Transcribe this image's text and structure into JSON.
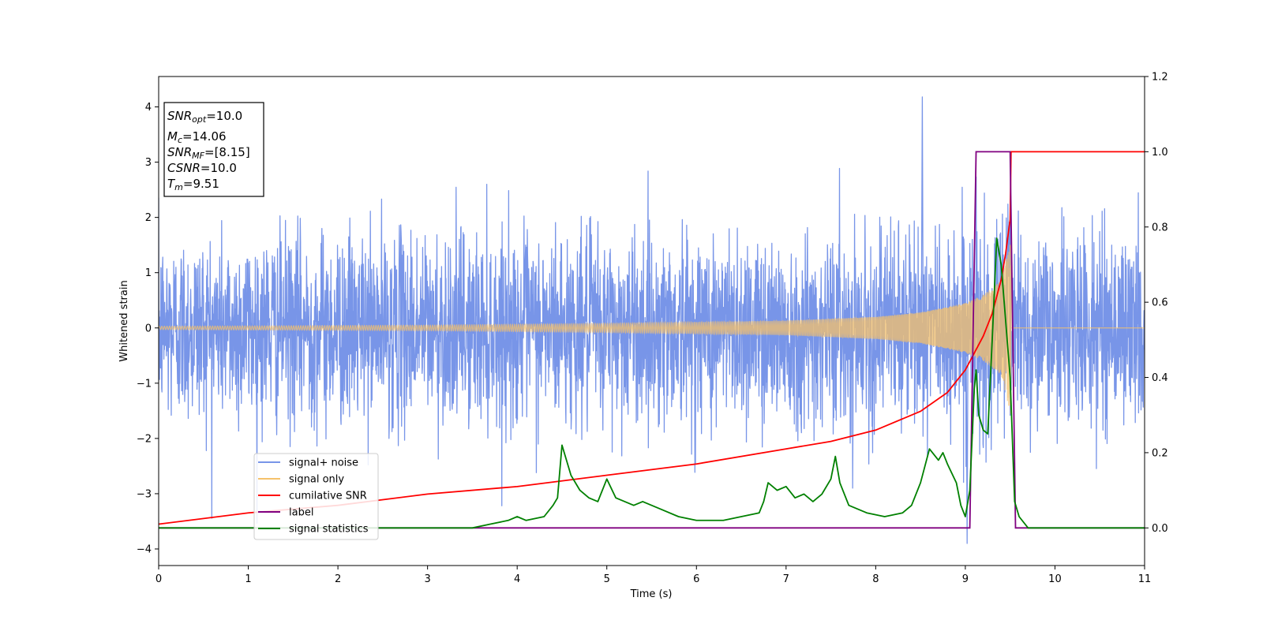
{
  "chart_data": {
    "type": "line",
    "xlabel": "Time (s)",
    "ylabel": "Whitened strain",
    "xlim": [
      0,
      11
    ],
    "ylim": [
      -4.3,
      4.55
    ],
    "y2lim": [
      -0.1,
      1.2
    ],
    "x_ticks": [
      0,
      1,
      2,
      3,
      4,
      5,
      6,
      7,
      8,
      9,
      10,
      11
    ],
    "x_tick_labels": [
      "0",
      "1",
      "2",
      "3",
      "4",
      "5",
      "6",
      "7",
      "8",
      "9",
      "10",
      "11"
    ],
    "y_ticks": [
      -4,
      -3,
      -2,
      -1,
      0,
      1,
      2,
      3,
      4
    ],
    "y_tick_labels": [
      "−4",
      "−3",
      "−2",
      "−1",
      "0",
      "1",
      "2",
      "3",
      "4"
    ],
    "y2_ticks": [
      0.0,
      0.2,
      0.4,
      0.6,
      0.8,
      1.0,
      1.2
    ],
    "y2_tick_labels": [
      "0.0",
      "0.2",
      "0.4",
      "0.6",
      "0.8",
      "1.0",
      "1.2"
    ],
    "legend_position": "lower-left",
    "info_box": {
      "lines": [
        {
          "sym": "SNR",
          "sub": "opt",
          "val": "=10.0"
        },
        {
          "sym": "M",
          "sub": "c",
          "val": "=14.06"
        },
        {
          "sym": "SNR",
          "sub": "MF",
          "val": "=[8.15]"
        },
        {
          "sym": "CSNR",
          "sub": "",
          "val": "=10.0"
        },
        {
          "sym": "T",
          "sub": "m",
          "val": "=9.51"
        }
      ]
    },
    "series": [
      {
        "name": "signal+ noise",
        "axis": "left",
        "color": "#7895e8",
        "noise_std": 0.85,
        "peak": {
          "x": 8.52,
          "y": 4.18
        },
        "min": {
          "x": 9.02,
          "y": -3.9
        }
      },
      {
        "name": "signal only",
        "axis": "left",
        "color": "#f5c26b",
        "merger_time": 9.51,
        "envelope_x": [
          0,
          3,
          5,
          7,
          8,
          8.5,
          9,
          9.2,
          9.4,
          9.51
        ],
        "envelope_y": [
          0.03,
          0.05,
          0.08,
          0.13,
          0.2,
          0.28,
          0.45,
          0.6,
          0.85,
          1.6
        ]
      },
      {
        "name": "cumilative SNR",
        "axis": "right",
        "color": "#ff0000",
        "x": [
          0,
          1,
          2,
          3,
          4,
          5,
          6,
          7,
          7.5,
          8,
          8.5,
          8.8,
          9.0,
          9.2,
          9.3,
          9.4,
          9.45,
          9.5,
          9.51,
          11
        ],
        "y": [
          0.01,
          0.04,
          0.06,
          0.09,
          0.11,
          0.14,
          0.17,
          0.21,
          0.23,
          0.26,
          0.31,
          0.36,
          0.42,
          0.51,
          0.57,
          0.66,
          0.73,
          0.82,
          1.0,
          1.0
        ]
      },
      {
        "name": "label",
        "axis": "right",
        "color": "#800080",
        "x": [
          0,
          9.05,
          9.12,
          9.5,
          9.56,
          11
        ],
        "y": [
          0,
          0,
          1,
          1,
          0,
          0
        ]
      },
      {
        "name": "signal statistics",
        "axis": "right",
        "color": "#008000",
        "x": [
          0,
          2.0,
          3.5,
          3.7,
          3.9,
          4.0,
          4.1,
          4.3,
          4.4,
          4.45,
          4.5,
          4.6,
          4.7,
          4.8,
          4.9,
          5.0,
          5.1,
          5.2,
          5.3,
          5.4,
          5.5,
          5.6,
          5.8,
          6.0,
          6.3,
          6.5,
          6.7,
          6.75,
          6.8,
          6.9,
          7.0,
          7.1,
          7.2,
          7.3,
          7.4,
          7.5,
          7.55,
          7.6,
          7.7,
          7.9,
          8.1,
          8.3,
          8.4,
          8.5,
          8.6,
          8.7,
          8.75,
          8.8,
          8.9,
          8.95,
          9.0,
          9.05,
          9.1,
          9.12,
          9.15,
          9.2,
          9.25,
          9.3,
          9.35,
          9.4,
          9.45,
          9.5,
          9.55,
          9.6,
          9.7,
          10.0,
          10.5,
          10.8,
          11.0
        ],
        "y": [
          0.0,
          0.0,
          0.0,
          0.01,
          0.02,
          0.03,
          0.02,
          0.03,
          0.06,
          0.08,
          0.22,
          0.14,
          0.1,
          0.08,
          0.07,
          0.13,
          0.08,
          0.07,
          0.06,
          0.07,
          0.06,
          0.05,
          0.03,
          0.02,
          0.02,
          0.03,
          0.04,
          0.07,
          0.12,
          0.1,
          0.11,
          0.08,
          0.09,
          0.07,
          0.09,
          0.13,
          0.19,
          0.12,
          0.06,
          0.04,
          0.03,
          0.04,
          0.06,
          0.12,
          0.21,
          0.18,
          0.2,
          0.17,
          0.12,
          0.06,
          0.03,
          0.1,
          0.37,
          0.42,
          0.3,
          0.26,
          0.25,
          0.5,
          0.77,
          0.7,
          0.55,
          0.4,
          0.07,
          0.03,
          0.0,
          0.0,
          0.0,
          0.0,
          0.0
        ]
      }
    ]
  }
}
